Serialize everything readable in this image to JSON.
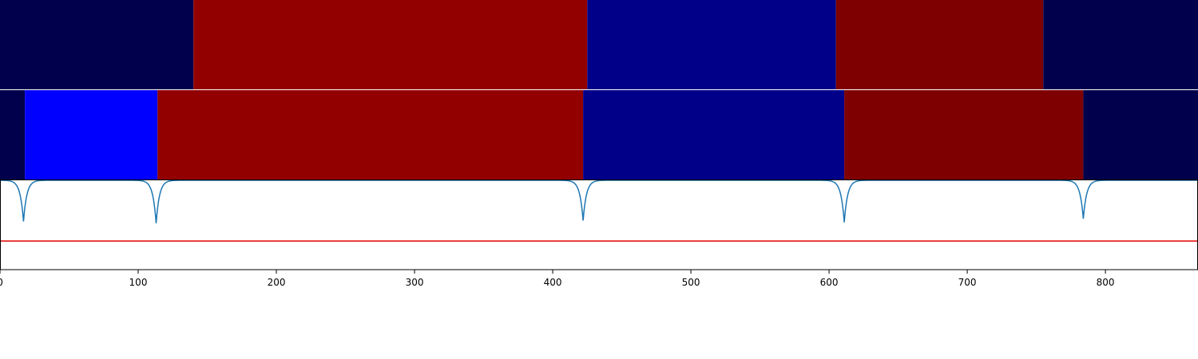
{
  "chart_data": {
    "type": "heatmap",
    "title": "",
    "xlabel": "",
    "ylabel": "",
    "xlim": [
      0,
      867
    ],
    "x_ticks": [
      0,
      100,
      200,
      300,
      400,
      500,
      600,
      700,
      800
    ],
    "x_tick_labels": [
      "0",
      "100",
      "200",
      "300",
      "400",
      "500",
      "600",
      "700",
      "800"
    ],
    "grid": false,
    "panels": [
      {
        "name": "",
        "type": "segments",
        "segments": [
          {
            "start": 0,
            "end": 140,
            "color": "#00004c"
          },
          {
            "start": 140,
            "end": 425,
            "color": "#920000"
          },
          {
            "start": 425,
            "end": 605,
            "color": "#000088"
          },
          {
            "start": 605,
            "end": 755,
            "color": "#7e0000"
          },
          {
            "start": 755,
            "end": 867,
            "color": "#00004c"
          }
        ]
      },
      {
        "name": "",
        "type": "segments",
        "segments": [
          {
            "start": 0,
            "end": 18,
            "color": "#00004c"
          },
          {
            "start": 18,
            "end": 114,
            "color": "#0000ff"
          },
          {
            "start": 114,
            "end": 422,
            "color": "#920000"
          },
          {
            "start": 422,
            "end": 611,
            "color": "#000088"
          },
          {
            "start": 611,
            "end": 784,
            "color": "#7e0000"
          },
          {
            "start": 784,
            "end": 867,
            "color": "#00004c"
          }
        ]
      },
      {
        "name": "",
        "type": "line",
        "ylim": [
          0,
          1
        ],
        "baseline": 1.0,
        "line_color": "#1f77b4",
        "threshold": 0.32,
        "threshold_color": "#e00000",
        "dips": [
          {
            "x": 17,
            "depth": 0.46
          },
          {
            "x": 113,
            "depth": 0.48
          },
          {
            "x": 422,
            "depth": 0.45
          },
          {
            "x": 611,
            "depth": 0.47
          },
          {
            "x": 784,
            "depth": 0.43
          }
        ]
      }
    ]
  }
}
